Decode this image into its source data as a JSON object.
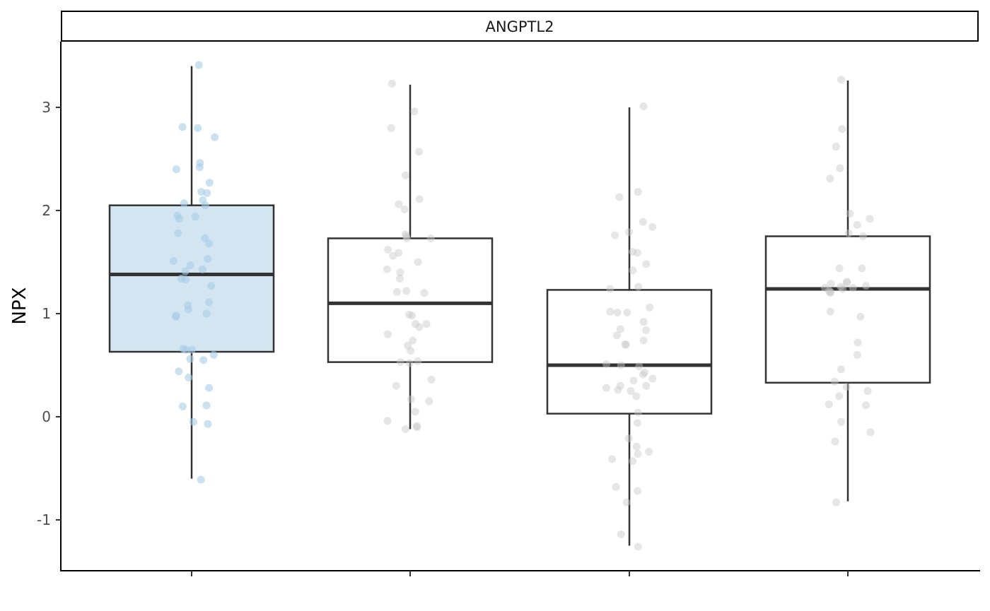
{
  "chart_data": {
    "type": "box",
    "facet_title": "ANGPTL2",
    "xlabel": "",
    "ylabel": "NPX",
    "ylim": [
      -1.5,
      3.6
    ],
    "yticks": [
      -1,
      0,
      1,
      2,
      3
    ],
    "grid": false,
    "legend": "none",
    "box_fill_highlight": "#d2e5f1",
    "point_color_highlight": "#a6cde6",
    "point_color_default": "#c8c8c8",
    "line_color": "#333333",
    "groups": [
      {
        "highlight": true,
        "box": {
          "whisker_low": -0.6,
          "q1": 0.63,
          "median": 1.38,
          "q3": 2.05,
          "whisker_high": 3.4
        },
        "points": [
          3.41,
          2.81,
          2.8,
          2.71,
          2.46,
          2.42,
          2.4,
          2.27,
          2.18,
          2.17,
          2.1,
          2.07,
          2.05,
          1.95,
          1.94,
          1.92,
          1.78,
          1.73,
          1.68,
          1.53,
          1.51,
          1.47,
          1.43,
          1.41,
          1.34,
          1.33,
          1.27,
          1.11,
          1.08,
          1.04,
          1.0,
          0.98,
          0.97,
          0.66,
          0.65,
          0.65,
          0.6,
          0.56,
          0.55,
          0.44,
          0.38,
          0.28,
          0.11,
          0.1,
          -0.05,
          -0.07,
          -0.61
        ]
      },
      {
        "highlight": false,
        "box": {
          "whisker_low": -0.12,
          "q1": 0.53,
          "median": 1.1,
          "q3": 1.73,
          "whisker_high": 3.22
        },
        "points": [
          3.23,
          2.96,
          2.8,
          2.57,
          2.34,
          2.11,
          2.06,
          2.01,
          1.77,
          1.75,
          1.73,
          1.73,
          1.62,
          1.59,
          1.56,
          1.5,
          1.43,
          1.4,
          1.34,
          1.22,
          1.21,
          1.2,
          0.99,
          0.98,
          0.9,
          0.9,
          0.87,
          0.8,
          0.74,
          0.69,
          0.64,
          0.54,
          0.53,
          0.52,
          0.36,
          0.3,
          0.17,
          0.15,
          0.05,
          -0.04,
          -0.09,
          -0.1,
          -0.12
        ]
      },
      {
        "highlight": false,
        "box": {
          "whisker_low": -1.25,
          "q1": 0.03,
          "median": 0.5,
          "q3": 1.23,
          "whisker_high": 3.0
        },
        "points": [
          3.01,
          2.18,
          2.13,
          1.89,
          1.84,
          1.79,
          1.76,
          1.6,
          1.59,
          1.48,
          1.42,
          1.26,
          1.24,
          1.06,
          1.02,
          1.01,
          1.01,
          0.92,
          0.85,
          0.84,
          0.79,
          0.74,
          0.7,
          0.7,
          0.51,
          0.5,
          0.49,
          0.43,
          0.41,
          0.37,
          0.35,
          0.3,
          0.3,
          0.28,
          0.26,
          0.25,
          0.2,
          0.04,
          -0.06,
          -0.21,
          -0.29,
          -0.34,
          -0.36,
          -0.41,
          -0.43,
          -0.68,
          -0.72,
          -0.83,
          -1.14,
          -1.26
        ]
      },
      {
        "highlight": false,
        "box": {
          "whisker_low": -0.82,
          "q1": 0.33,
          "median": 1.24,
          "q3": 1.75,
          "whisker_high": 3.26
        },
        "points": [
          3.27,
          2.79,
          2.62,
          2.41,
          2.31,
          1.97,
          1.92,
          1.86,
          1.78,
          1.75,
          1.44,
          1.44,
          1.31,
          1.3,
          1.29,
          1.27,
          1.26,
          1.25,
          1.25,
          1.24,
          1.22,
          1.21,
          1.2,
          1.02,
          0.97,
          0.72,
          0.6,
          0.46,
          0.34,
          0.29,
          0.25,
          0.2,
          0.12,
          0.11,
          -0.05,
          -0.15,
          -0.24,
          -0.83
        ]
      }
    ]
  }
}
